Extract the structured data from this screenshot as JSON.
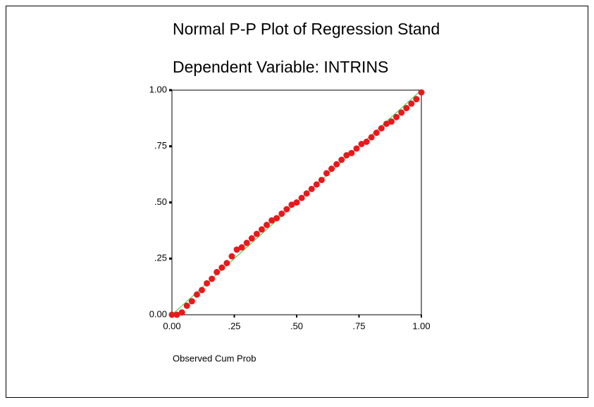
{
  "chart_data": {
    "type": "scatter",
    "title": "Normal P-P Plot of Regression Stand",
    "subtitle": "Dependent Variable: INTRINS",
    "x_label": "Observed Cum Prob",
    "color": "#e8191d",
    "reference_line_color": "#33cc33",
    "xlim": [
      0,
      1
    ],
    "ylim": [
      0,
      1
    ],
    "xticks": [
      {
        "value": 0,
        "label": "0.00"
      },
      {
        "value": 0.25,
        "label": ".25"
      },
      {
        "value": 0.5,
        "label": ".50"
      },
      {
        "value": 0.75,
        "label": ".75"
      },
      {
        "value": 1,
        "label": "1.00"
      }
    ],
    "yticks": [
      {
        "value": 0,
        "label": "0.00"
      },
      {
        "value": 0.25,
        "label": ".25"
      },
      {
        "value": 0.5,
        "label": ".50"
      },
      {
        "value": 0.75,
        "label": ".75"
      },
      {
        "value": 1,
        "label": "1.00"
      }
    ],
    "x": [
      0,
      0.02,
      0.04,
      0.06,
      0.08,
      0.1,
      0.12,
      0.14,
      0.16,
      0.18,
      0.2,
      0.22,
      0.24,
      0.26,
      0.28,
      0.3,
      0.32,
      0.34,
      0.36,
      0.38,
      0.4,
      0.42,
      0.44,
      0.46,
      0.48,
      0.5,
      0.52,
      0.54,
      0.56,
      0.58,
      0.6,
      0.62,
      0.64,
      0.66,
      0.68,
      0.7,
      0.72,
      0.74,
      0.76,
      0.78,
      0.8,
      0.82,
      0.84,
      0.86,
      0.88,
      0.9,
      0.92,
      0.94,
      0.96,
      0.98,
      1
    ],
    "values": [
      0,
      0,
      0.01,
      0.04,
      0.06,
      0.09,
      0.11,
      0.14,
      0.16,
      0.19,
      0.21,
      0.23,
      0.26,
      0.29,
      0.3,
      0.32,
      0.34,
      0.36,
      0.38,
      0.4,
      0.42,
      0.43,
      0.45,
      0.47,
      0.49,
      0.5,
      0.52,
      0.54,
      0.56,
      0.58,
      0.6,
      0.63,
      0.65,
      0.67,
      0.69,
      0.71,
      0.72,
      0.74,
      0.76,
      0.77,
      0.79,
      0.81,
      0.83,
      0.85,
      0.86,
      0.88,
      0.9,
      0.92,
      0.94,
      0.96,
      0.99
    ]
  }
}
